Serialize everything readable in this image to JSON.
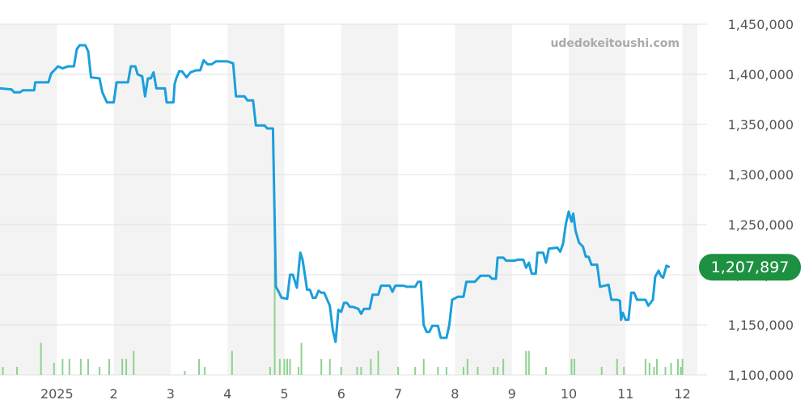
{
  "watermark": "udedokeitoushi.com",
  "colors": {
    "line": "#1a9fdc",
    "volume": "#8fd18f",
    "badge": "#1d9141",
    "band": "#f3f3f3",
    "grid": "#e0e0e0"
  },
  "chart_data": {
    "type": "line",
    "title": "",
    "xlabel": "",
    "ylabel": "",
    "ylim": [
      1100000,
      1450000
    ],
    "y_ticks": [
      1100000,
      1150000,
      1200000,
      1250000,
      1300000,
      1350000,
      1400000,
      1450000
    ],
    "y_tick_labels": [
      "1,100,000",
      "1,150,000",
      "1,200,000",
      "1,250,000",
      "1,300,000",
      "1,350,000",
      "1,400,000",
      "1,450,000"
    ],
    "x_range": [
      11.0,
      23.05
    ],
    "x_ticks": [
      12,
      13,
      14,
      15,
      16,
      17,
      18,
      19,
      20,
      21,
      22,
      23
    ],
    "x_tick_labels": [
      "2025",
      "2",
      "3",
      "4",
      "5",
      "6",
      "7",
      "8",
      "9",
      "10",
      "11",
      "12"
    ],
    "grid": true,
    "legend": "none",
    "last_value_label": "1,207,897",
    "last_value": 1207897,
    "series": [
      {
        "values": [
          [
            11.0,
            1386000
          ],
          [
            11.2,
            1385000
          ],
          [
            11.25,
            1382000
          ],
          [
            11.35,
            1382000
          ],
          [
            11.4,
            1384000
          ],
          [
            11.6,
            1384000
          ],
          [
            11.62,
            1392000
          ],
          [
            11.85,
            1392000
          ],
          [
            11.9,
            1401000
          ],
          [
            11.97,
            1405000
          ],
          [
            12.02,
            1408000
          ],
          [
            12.1,
            1406000
          ],
          [
            12.2,
            1408000
          ],
          [
            12.3,
            1408000
          ],
          [
            12.35,
            1425000
          ],
          [
            12.4,
            1429000
          ],
          [
            12.5,
            1429000
          ],
          [
            12.55,
            1423000
          ],
          [
            12.6,
            1397000
          ],
          [
            12.75,
            1396000
          ],
          [
            12.8,
            1382000
          ],
          [
            12.88,
            1372000
          ],
          [
            13.0,
            1372000
          ],
          [
            13.05,
            1392000
          ],
          [
            13.25,
            1392000
          ],
          [
            13.3,
            1408000
          ],
          [
            13.38,
            1408000
          ],
          [
            13.42,
            1400000
          ],
          [
            13.5,
            1398000
          ],
          [
            13.55,
            1378000
          ],
          [
            13.6,
            1396000
          ],
          [
            13.65,
            1396000
          ],
          [
            13.7,
            1402000
          ],
          [
            13.75,
            1386000
          ],
          [
            13.9,
            1386000
          ],
          [
            13.93,
            1372000
          ],
          [
            14.05,
            1372000
          ],
          [
            14.07,
            1390000
          ],
          [
            14.1,
            1396000
          ],
          [
            14.15,
            1403000
          ],
          [
            14.2,
            1403000
          ],
          [
            14.28,
            1397000
          ],
          [
            14.35,
            1402000
          ],
          [
            14.45,
            1404000
          ],
          [
            14.52,
            1404000
          ],
          [
            14.58,
            1414000
          ],
          [
            14.65,
            1410000
          ],
          [
            14.72,
            1410000
          ],
          [
            14.8,
            1413000
          ],
          [
            15.0,
            1413000
          ],
          [
            15.1,
            1411000
          ],
          [
            15.15,
            1378000
          ],
          [
            15.3,
            1378000
          ],
          [
            15.35,
            1374000
          ],
          [
            15.45,
            1374000
          ],
          [
            15.5,
            1349000
          ],
          [
            15.65,
            1349000
          ],
          [
            15.7,
            1346000
          ],
          [
            15.8,
            1346000
          ],
          [
            15.85,
            1188000
          ],
          [
            15.9,
            1183000
          ],
          [
            15.95,
            1177000
          ],
          [
            16.05,
            1176000
          ],
          [
            16.1,
            1200000
          ],
          [
            16.15,
            1200000
          ],
          [
            16.22,
            1187000
          ],
          [
            16.28,
            1222000
          ],
          [
            16.32,
            1215000
          ],
          [
            16.4,
            1185000
          ],
          [
            16.45,
            1185000
          ],
          [
            16.5,
            1177000
          ],
          [
            16.55,
            1177000
          ],
          [
            16.6,
            1184000
          ],
          [
            16.65,
            1182000
          ],
          [
            16.7,
            1182000
          ],
          [
            16.8,
            1169000
          ],
          [
            16.85,
            1145000
          ],
          [
            16.9,
            1133000
          ],
          [
            16.95,
            1165000
          ],
          [
            17.0,
            1163000
          ],
          [
            17.05,
            1172000
          ],
          [
            17.1,
            1172000
          ],
          [
            17.15,
            1168000
          ],
          [
            17.2,
            1168000
          ],
          [
            17.3,
            1166000
          ],
          [
            17.35,
            1161000
          ],
          [
            17.4,
            1166000
          ],
          [
            17.5,
            1166000
          ],
          [
            17.55,
            1180000
          ],
          [
            17.65,
            1180000
          ],
          [
            17.7,
            1189000
          ],
          [
            17.75,
            1189000
          ],
          [
            17.85,
            1189000
          ],
          [
            17.9,
            1183000
          ],
          [
            17.95,
            1189000
          ],
          [
            18.1,
            1189000
          ],
          [
            18.15,
            1188000
          ],
          [
            18.3,
            1188000
          ],
          [
            18.35,
            1193000
          ],
          [
            18.4,
            1193000
          ],
          [
            18.45,
            1150000
          ],
          [
            18.5,
            1143000
          ],
          [
            18.55,
            1143000
          ],
          [
            18.6,
            1149000
          ],
          [
            18.7,
            1149000
          ],
          [
            18.75,
            1137000
          ],
          [
            18.85,
            1137000
          ],
          [
            18.9,
            1150000
          ],
          [
            18.95,
            1175000
          ],
          [
            19.05,
            1178000
          ],
          [
            19.15,
            1178000
          ],
          [
            19.2,
            1193000
          ],
          [
            19.35,
            1193000
          ],
          [
            19.45,
            1199000
          ],
          [
            19.6,
            1199000
          ],
          [
            19.65,
            1196000
          ],
          [
            19.72,
            1196000
          ],
          [
            19.75,
            1217000
          ],
          [
            19.85,
            1217000
          ],
          [
            19.9,
            1214000
          ],
          [
            20.05,
            1214000
          ],
          [
            20.1,
            1215000
          ],
          [
            20.2,
            1215000
          ],
          [
            20.25,
            1207000
          ],
          [
            20.3,
            1212000
          ],
          [
            20.35,
            1201000
          ],
          [
            20.42,
            1201000
          ],
          [
            20.45,
            1222000
          ],
          [
            20.55,
            1222000
          ],
          [
            20.6,
            1212000
          ],
          [
            20.65,
            1226000
          ],
          [
            20.8,
            1227000
          ],
          [
            20.85,
            1223000
          ],
          [
            20.9,
            1231000
          ],
          [
            20.95,
            1251000
          ],
          [
            21.0,
            1263000
          ],
          [
            21.05,
            1253000
          ],
          [
            21.08,
            1261000
          ],
          [
            21.12,
            1244000
          ],
          [
            21.18,
            1232000
          ],
          [
            21.25,
            1228000
          ],
          [
            21.3,
            1218000
          ],
          [
            21.35,
            1218000
          ],
          [
            21.4,
            1210000
          ],
          [
            21.5,
            1210000
          ],
          [
            21.55,
            1188000
          ],
          [
            21.7,
            1190000
          ],
          [
            21.75,
            1175000
          ],
          [
            21.85,
            1175000
          ],
          [
            21.9,
            1174000
          ],
          [
            21.92,
            1155000
          ],
          [
            21.95,
            1162000
          ],
          [
            22.0,
            1155000
          ],
          [
            22.05,
            1155000
          ],
          [
            22.1,
            1182000
          ],
          [
            22.15,
            1182000
          ],
          [
            22.2,
            1175000
          ],
          [
            22.35,
            1175000
          ],
          [
            22.4,
            1169000
          ],
          [
            22.48,
            1175000
          ],
          [
            22.52,
            1198000
          ],
          [
            22.58,
            1204000
          ],
          [
            22.62,
            1199000
          ],
          [
            22.66,
            1197000
          ],
          [
            22.72,
            1209000
          ],
          [
            22.76,
            1207897
          ]
        ]
      }
    ],
    "volume": {
      "type": "bar",
      "points": [
        [
          11.05,
          2
        ],
        [
          11.3,
          2
        ],
        [
          11.72,
          8
        ],
        [
          11.95,
          3
        ],
        [
          12.1,
          4
        ],
        [
          12.22,
          4
        ],
        [
          12.42,
          4
        ],
        [
          12.55,
          4
        ],
        [
          12.75,
          2
        ],
        [
          12.92,
          4
        ],
        [
          13.15,
          4
        ],
        [
          13.22,
          4
        ],
        [
          13.35,
          6
        ],
        [
          14.25,
          1
        ],
        [
          14.5,
          4
        ],
        [
          14.6,
          2
        ],
        [
          15.08,
          6
        ],
        [
          15.75,
          2
        ],
        [
          15.83,
          29
        ],
        [
          15.92,
          4
        ],
        [
          16.0,
          4
        ],
        [
          16.05,
          4
        ],
        [
          16.1,
          4
        ],
        [
          16.25,
          2
        ],
        [
          16.3,
          8
        ],
        [
          16.65,
          4
        ],
        [
          16.8,
          4
        ],
        [
          17.0,
          2
        ],
        [
          17.28,
          2
        ],
        [
          17.35,
          2
        ],
        [
          17.52,
          4
        ],
        [
          17.65,
          6
        ],
        [
          18.0,
          2
        ],
        [
          18.3,
          2
        ],
        [
          18.45,
          4
        ],
        [
          18.7,
          2
        ],
        [
          18.85,
          2
        ],
        [
          19.15,
          2
        ],
        [
          19.22,
          4
        ],
        [
          19.4,
          2
        ],
        [
          19.68,
          2
        ],
        [
          19.75,
          2
        ],
        [
          19.85,
          4
        ],
        [
          20.25,
          6
        ],
        [
          20.3,
          6
        ],
        [
          20.6,
          2
        ],
        [
          21.05,
          4
        ],
        [
          21.1,
          4
        ],
        [
          21.58,
          2
        ],
        [
          21.85,
          4
        ],
        [
          21.97,
          2
        ],
        [
          22.35,
          4
        ],
        [
          22.42,
          3
        ],
        [
          22.5,
          2
        ],
        [
          22.55,
          4
        ],
        [
          22.7,
          2
        ],
        [
          22.8,
          3
        ],
        [
          22.92,
          4
        ],
        [
          22.97,
          2
        ],
        [
          23.0,
          4
        ]
      ]
    }
  }
}
